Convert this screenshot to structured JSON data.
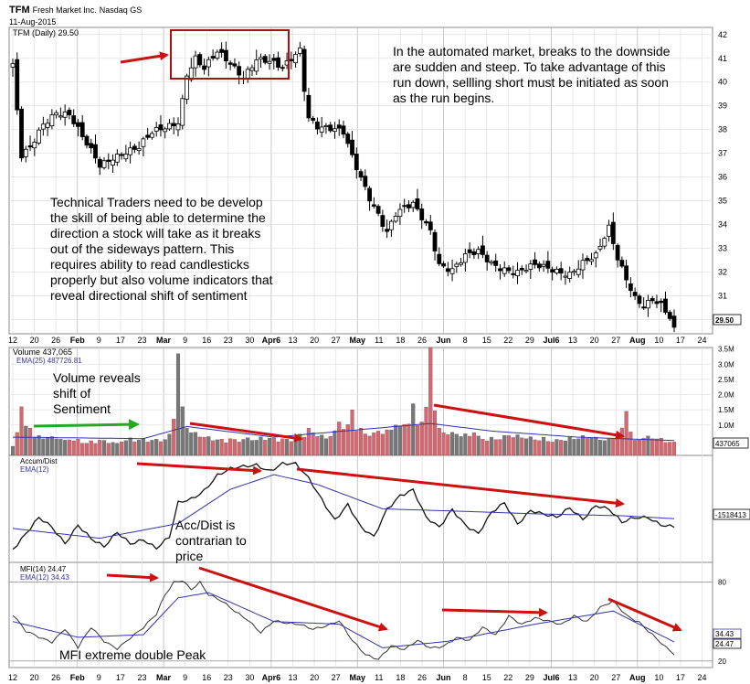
{
  "header": {
    "symbol": "TFM",
    "company": "Fresh Market Inc.",
    "exchange": "Nasdaq GS",
    "date": "11-Aug-2015"
  },
  "chart_data": [
    {
      "type": "candlestick",
      "panel": "price",
      "legend": "TFM (Daily) 29.50",
      "last_price_label": "29.50",
      "y_ticks": [
        30,
        31,
        32,
        33,
        34,
        35,
        36,
        37,
        38,
        39,
        40,
        41,
        42
      ],
      "ylim": [
        29.4,
        42.3
      ],
      "approx_closes": [
        [
          0,
          40.6
        ],
        [
          2,
          36.8
        ],
        [
          4,
          37.2
        ],
        [
          7,
          38.3
        ],
        [
          10,
          38.8
        ],
        [
          13,
          38.6
        ],
        [
          16,
          37.6
        ],
        [
          20,
          36.5
        ],
        [
          23,
          36.9
        ],
        [
          26,
          37.1
        ],
        [
          29,
          37.2
        ],
        [
          32,
          37.8
        ],
        [
          35,
          38.1
        ],
        [
          38,
          38.4
        ],
        [
          39,
          39.3
        ],
        [
          40,
          40.4
        ],
        [
          42,
          41.0
        ],
        [
          44,
          40.5
        ],
        [
          47,
          41.2
        ],
        [
          50,
          40.8
        ],
        [
          53,
          40.3
        ],
        [
          56,
          41.0
        ],
        [
          59,
          40.8
        ],
        [
          62,
          40.5
        ],
        [
          65,
          41.2
        ],
        [
          66,
          41.4
        ],
        [
          67,
          39.8
        ],
        [
          68,
          38.6
        ],
        [
          70,
          38.2
        ],
        [
          73,
          38.0
        ],
        [
          76,
          37.8
        ],
        [
          78,
          36.8
        ],
        [
          80,
          36.0
        ],
        [
          82,
          35.2
        ],
        [
          84,
          34.5
        ],
        [
          86,
          33.7
        ],
        [
          88,
          34.4
        ],
        [
          90,
          34.6
        ],
        [
          92,
          34.8
        ],
        [
          94,
          34.3
        ],
        [
          96,
          33.8
        ],
        [
          98,
          32.4
        ],
        [
          101,
          32.1
        ],
        [
          104,
          32.6
        ],
        [
          107,
          32.8
        ],
        [
          110,
          32.4
        ],
        [
          113,
          32.2
        ],
        [
          116,
          32.0
        ],
        [
          120,
          32.2
        ],
        [
          124,
          32.1
        ],
        [
          128,
          32.0
        ],
        [
          131,
          32.4
        ],
        [
          134,
          32.6
        ],
        [
          137,
          33.8
        ],
        [
          139,
          32.6
        ],
        [
          141,
          31.8
        ],
        [
          143,
          31.0
        ],
        [
          145,
          30.6
        ],
        [
          147,
          30.8
        ],
        [
          149,
          30.5
        ],
        [
          151,
          30.0
        ],
        [
          152,
          29.5
        ]
      ],
      "x_tick_labels": [
        "12",
        "20",
        "26",
        "Feb",
        "9",
        "17",
        "23",
        "Mar",
        "9",
        "16",
        "23",
        "30",
        "Apr6",
        "13",
        "20",
        "27",
        "May",
        "11",
        "18",
        "26",
        "Jun",
        "8",
        "15",
        "22",
        "29",
        "Jul6",
        "13",
        "20",
        "27",
        "Aug",
        "10",
        "17",
        "24"
      ]
    },
    {
      "type": "bar",
      "panel": "volume",
      "legend": "Volume 437,065",
      "ema_legend": "EMA(25) 487726.81",
      "last_value_label": "437065",
      "y_tick_labels": [
        "1.0M",
        "1.5M",
        "2.0M",
        "2.5M",
        "3.0M",
        "3.5M"
      ],
      "y_ticks": [
        1.0,
        1.5,
        2.0,
        2.5,
        3.0,
        3.5
      ],
      "ylim": [
        0,
        3.55
      ],
      "unit": "M",
      "approx_values": [
        [
          0,
          0.3
        ],
        [
          2,
          1.6
        ],
        [
          4,
          0.9
        ],
        [
          8,
          0.6
        ],
        [
          12,
          0.5
        ],
        [
          16,
          0.4
        ],
        [
          20,
          0.5
        ],
        [
          24,
          0.4
        ],
        [
          28,
          0.45
        ],
        [
          32,
          0.5
        ],
        [
          36,
          0.7
        ],
        [
          37,
          1.2
        ],
        [
          38,
          3.35
        ],
        [
          39,
          1.6
        ],
        [
          40,
          0.9
        ],
        [
          44,
          0.6
        ],
        [
          50,
          0.55
        ],
        [
          56,
          0.5
        ],
        [
          62,
          0.55
        ],
        [
          66,
          0.7
        ],
        [
          68,
          0.9
        ],
        [
          72,
          0.55
        ],
        [
          75,
          1.1
        ],
        [
          78,
          1.5
        ],
        [
          80,
          0.9
        ],
        [
          84,
          0.8
        ],
        [
          88,
          1.0
        ],
        [
          92,
          1.7
        ],
        [
          94,
          1.1
        ],
        [
          96,
          3.55
        ],
        [
          98,
          0.9
        ],
        [
          102,
          0.7
        ],
        [
          106,
          0.75
        ],
        [
          110,
          0.6
        ],
        [
          114,
          0.65
        ],
        [
          118,
          0.55
        ],
        [
          122,
          0.6
        ],
        [
          126,
          0.5
        ],
        [
          130,
          0.55
        ],
        [
          134,
          0.6
        ],
        [
          138,
          0.55
        ],
        [
          141,
          1.45
        ],
        [
          143,
          0.5
        ],
        [
          147,
          0.55
        ],
        [
          152,
          0.44
        ]
      ],
      "approx_ema": [
        [
          0,
          0.6
        ],
        [
          30,
          0.55
        ],
        [
          40,
          0.95
        ],
        [
          60,
          0.6
        ],
        [
          80,
          0.85
        ],
        [
          96,
          1.05
        ],
        [
          110,
          0.8
        ],
        [
          130,
          0.6
        ],
        [
          152,
          0.49
        ]
      ]
    },
    {
      "type": "line",
      "panel": "accum_dist",
      "legend": "Accum/Dist",
      "ema_legend": "EMA(12)",
      "last_value_label": "-1518413",
      "approx_values": [
        [
          0,
          0.1
        ],
        [
          3,
          0.25
        ],
        [
          6,
          0.4
        ],
        [
          9,
          0.3
        ],
        [
          12,
          0.15
        ],
        [
          15,
          0.35
        ],
        [
          18,
          0.2
        ],
        [
          21,
          0.1
        ],
        [
          24,
          0.25
        ],
        [
          27,
          0.15
        ],
        [
          30,
          0.2
        ],
        [
          33,
          0.1
        ],
        [
          36,
          0.2
        ],
        [
          38,
          0.55
        ],
        [
          41,
          0.6
        ],
        [
          44,
          0.7
        ],
        [
          47,
          0.85
        ],
        [
          50,
          0.9
        ],
        [
          53,
          0.92
        ],
        [
          56,
          0.95
        ],
        [
          59,
          0.9
        ],
        [
          62,
          0.97
        ],
        [
          65,
          0.95
        ],
        [
          68,
          0.8
        ],
        [
          71,
          0.6
        ],
        [
          74,
          0.4
        ],
        [
          77,
          0.55
        ],
        [
          80,
          0.3
        ],
        [
          83,
          0.2
        ],
        [
          86,
          0.5
        ],
        [
          89,
          0.65
        ],
        [
          92,
          0.7
        ],
        [
          95,
          0.4
        ],
        [
          98,
          0.3
        ],
        [
          101,
          0.5
        ],
        [
          104,
          0.35
        ],
        [
          107,
          0.25
        ],
        [
          110,
          0.45
        ],
        [
          113,
          0.55
        ],
        [
          116,
          0.35
        ],
        [
          119,
          0.5
        ],
        [
          122,
          0.45
        ],
        [
          125,
          0.4
        ],
        [
          128,
          0.5
        ],
        [
          131,
          0.4
        ],
        [
          134,
          0.55
        ],
        [
          137,
          0.5
        ],
        [
          140,
          0.35
        ],
        [
          143,
          0.4
        ],
        [
          146,
          0.42
        ],
        [
          149,
          0.35
        ],
        [
          152,
          0.32
        ]
      ],
      "approx_ema": [
        [
          0,
          0.3
        ],
        [
          20,
          0.2
        ],
        [
          38,
          0.35
        ],
        [
          50,
          0.7
        ],
        [
          60,
          0.85
        ],
        [
          70,
          0.75
        ],
        [
          85,
          0.5
        ],
        [
          100,
          0.48
        ],
        [
          120,
          0.45
        ],
        [
          140,
          0.43
        ],
        [
          152,
          0.4
        ]
      ]
    },
    {
      "type": "line",
      "panel": "mfi",
      "legend": "MFI(14) 24.47",
      "ema_legend": "EMA(12) 34.43",
      "y_ticks": [
        20,
        80
      ],
      "ylim": [
        15,
        95
      ],
      "value_labels": [
        "34.43",
        "24.47"
      ],
      "approx_values": [
        [
          0,
          55
        ],
        [
          3,
          42
        ],
        [
          6,
          38
        ],
        [
          9,
          35
        ],
        [
          12,
          45
        ],
        [
          15,
          30
        ],
        [
          18,
          45
        ],
        [
          21,
          35
        ],
        [
          24,
          30
        ],
        [
          27,
          38
        ],
        [
          30,
          45
        ],
        [
          33,
          55
        ],
        [
          35,
          70
        ],
        [
          37,
          80
        ],
        [
          39,
          82
        ],
        [
          41,
          75
        ],
        [
          43,
          80
        ],
        [
          45,
          70
        ],
        [
          48,
          65
        ],
        [
          51,
          58
        ],
        [
          54,
          52
        ],
        [
          57,
          42
        ],
        [
          60,
          50
        ],
        [
          63,
          48
        ],
        [
          66,
          48
        ],
        [
          69,
          45
        ],
        [
          72,
          47
        ],
        [
          75,
          50
        ],
        [
          78,
          35
        ],
        [
          81,
          25
        ],
        [
          84,
          22
        ],
        [
          87,
          32
        ],
        [
          90,
          28
        ],
        [
          93,
          35
        ],
        [
          96,
          30
        ],
        [
          99,
          32
        ],
        [
          102,
          38
        ],
        [
          105,
          35
        ],
        [
          108,
          45
        ],
        [
          111,
          40
        ],
        [
          114,
          55
        ],
        [
          117,
          48
        ],
        [
          120,
          52
        ],
        [
          123,
          50
        ],
        [
          126,
          48
        ],
        [
          129,
          55
        ],
        [
          132,
          50
        ],
        [
          135,
          60
        ],
        [
          138,
          65
        ],
        [
          141,
          55
        ],
        [
          144,
          50
        ],
        [
          147,
          40
        ],
        [
          150,
          30
        ],
        [
          152,
          24.47
        ]
      ],
      "approx_ema": [
        [
          0,
          50
        ],
        [
          15,
          38
        ],
        [
          30,
          40
        ],
        [
          38,
          68
        ],
        [
          45,
          72
        ],
        [
          60,
          50
        ],
        [
          75,
          48
        ],
        [
          85,
          30
        ],
        [
          100,
          35
        ],
        [
          120,
          48
        ],
        [
          138,
          58
        ],
        [
          152,
          34.43
        ]
      ]
    }
  ],
  "annotations": {
    "top_right": [
      "In the automated market, breaks to the downside",
      "are sudden and steep.  To take advantage of this",
      "run down, sellling short must be initiated as soon",
      "as the run begins."
    ],
    "left_middle": [
      "Technical Traders need to be develop",
      "the skill of being able to determine the",
      "direction a stock will  take as it breaks",
      "out of the sideways pattern. This",
      "requires ability to read candlesticks",
      "properly but also volume indicators that",
      "reveal directional shift of sentiment"
    ],
    "volume_note": [
      "Volume reveals",
      "shift of",
      "Sentiment"
    ],
    "accdist_note": [
      "Acc/Dist is",
      "contrarian to",
      "price"
    ],
    "mfi_note": "MFI extreme double Peak"
  },
  "colors": {
    "up_candle": "#ffffff",
    "down_candle": "#000000",
    "volume_up": "#777777",
    "volume_down": "#d9666e",
    "ema_line": "#3333aa",
    "arrow_red": "#cc1111",
    "arrow_green": "#22aa22",
    "box_red": "#aa1111",
    "mfi_peak_fill": "#3a7a3a"
  }
}
